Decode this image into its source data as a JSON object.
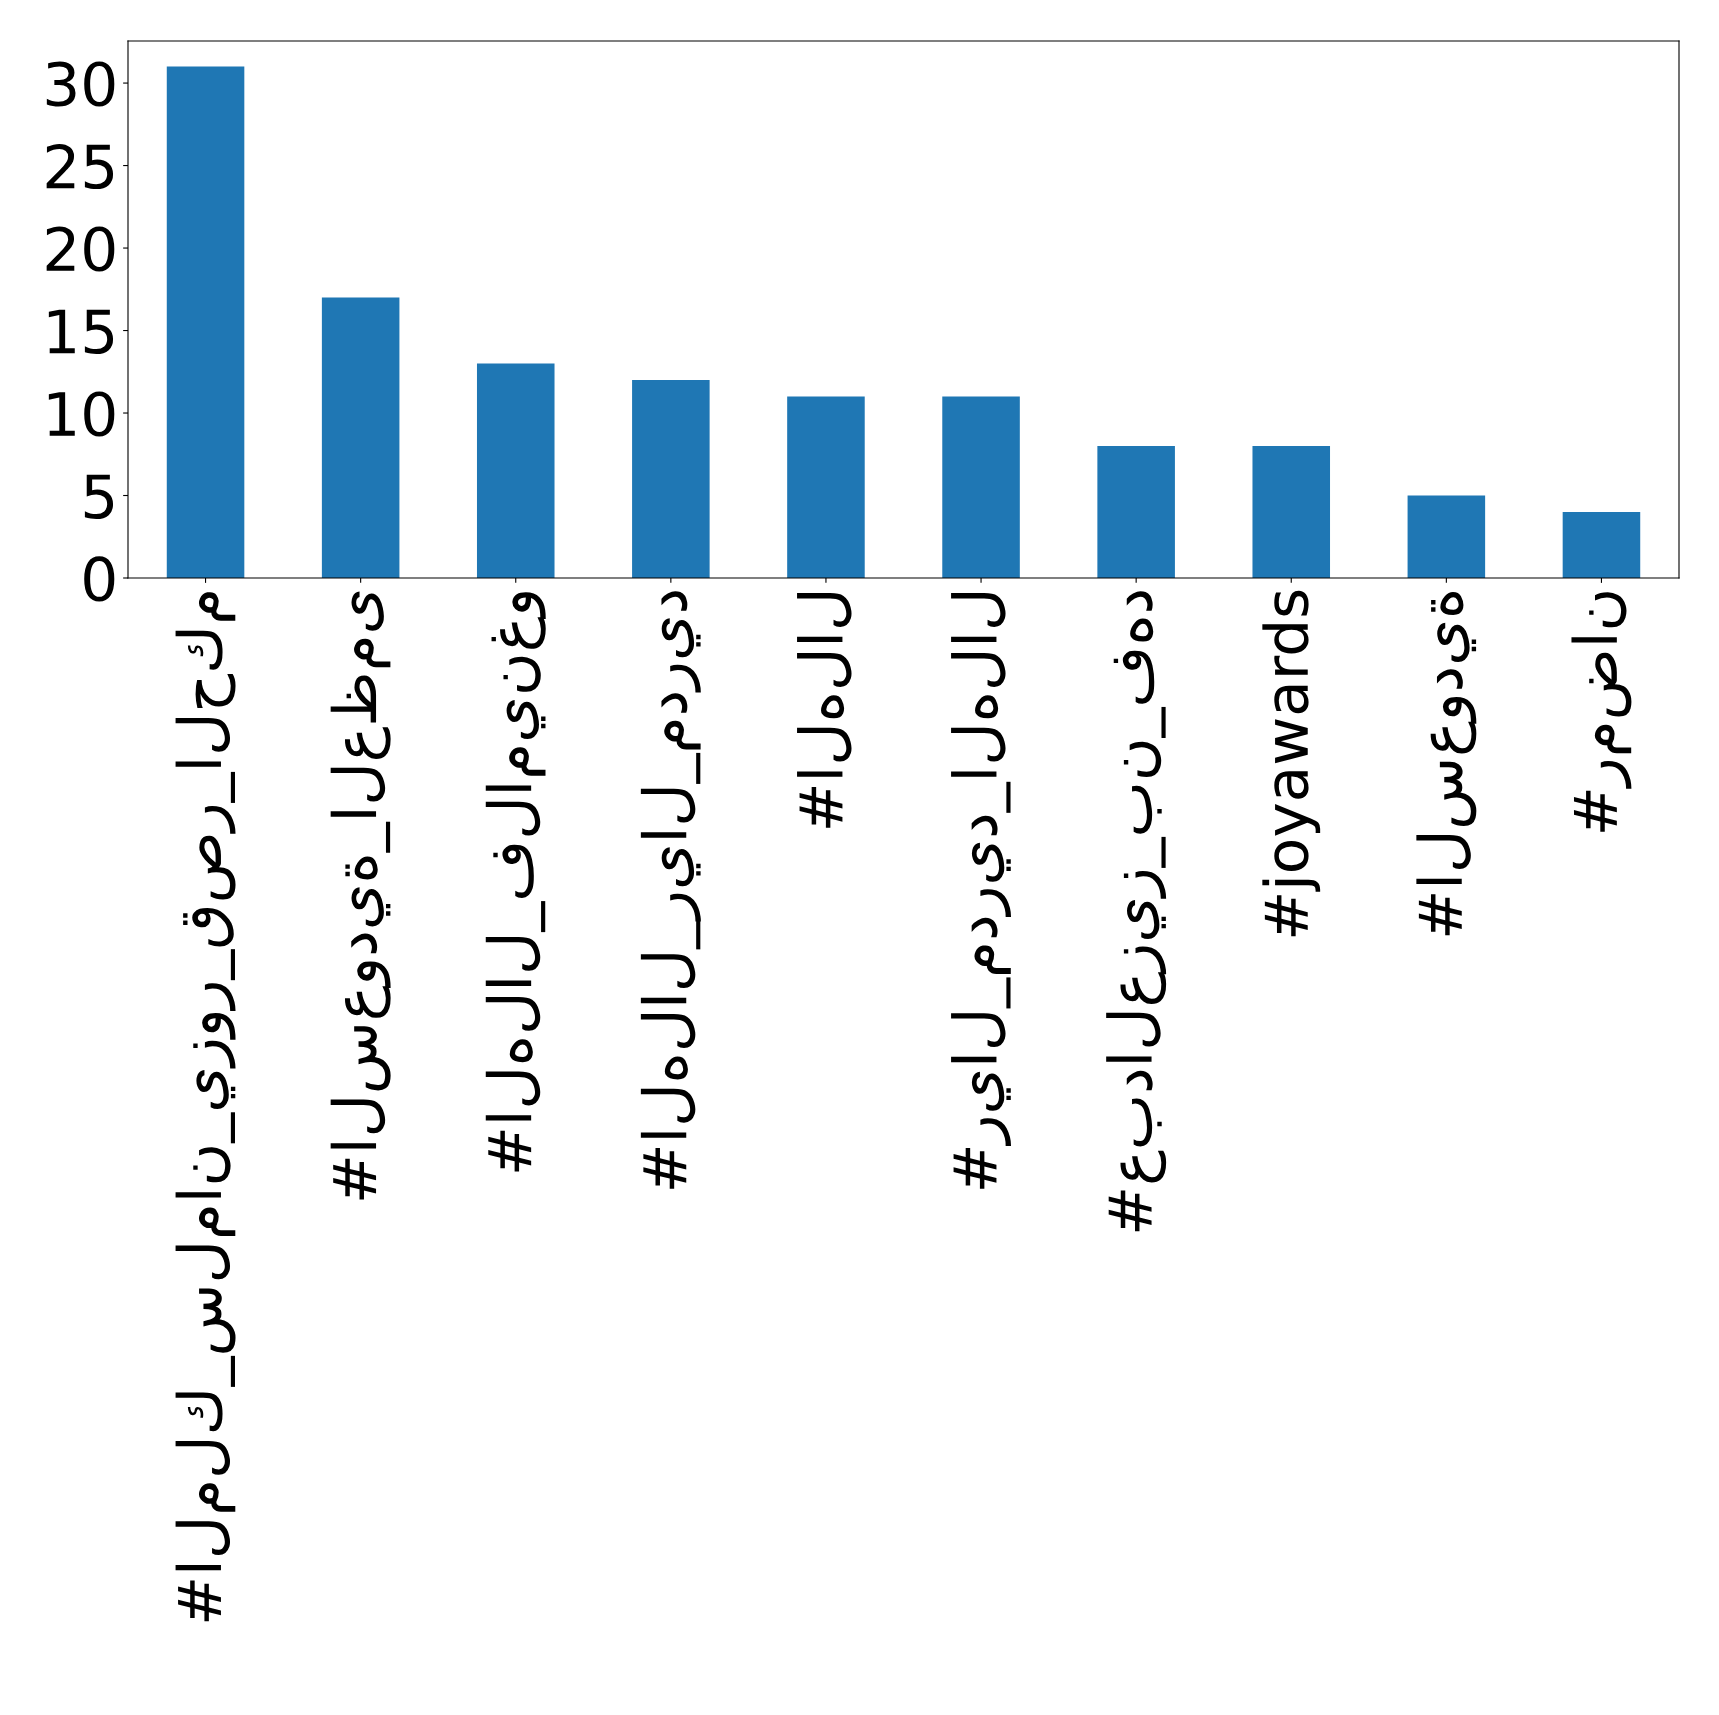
{
  "chart_data": {
    "type": "bar",
    "categories": [
      "#الملك_سلمان_يزور_قصر_الحكم",
      "#السعودية_العظمى",
      "#الهلال_فلامينغو",
      "#الهلال_ريال_مدريد",
      "#الهلال",
      "#ريال_مدريد_الهلال",
      "#عبدالعزيز_بن_فهد",
      "#joyawards",
      "#السعودية",
      "#رمضان"
    ],
    "values": [
      31,
      17,
      13,
      12,
      11,
      11,
      8,
      8,
      5,
      4
    ],
    "color": "#1f77b4",
    "ylim": [
      0,
      32.55
    ],
    "yticks": [
      0,
      5,
      10,
      15,
      20,
      25,
      30
    ],
    "grid": false,
    "legend": false
  }
}
